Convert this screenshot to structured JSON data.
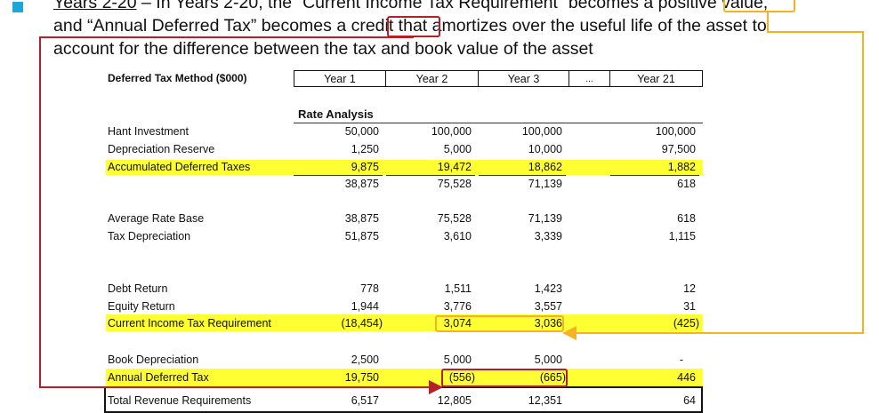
{
  "intro": {
    "line1_prefix": "Years 2-20",
    "line1_rest": " – In Years 2-20, the “Current Income Tax Requirement” becomes a ",
    "line1_emph": "positive",
    "line1_end": " value,",
    "line2_prefix": "and “Annual Deferred Tax” becomes a ",
    "line2_emph": "credit",
    "line2_end": " that amortizes over the useful life of the asset to",
    "line3": "account for the difference between the tax and book value of the asset"
  },
  "table": {
    "title": "Deferred Tax Method ($000)",
    "columns": [
      "Year 1",
      "Year 2",
      "Year 3",
      "...",
      "Year 21"
    ],
    "section_label": "Rate Analysis",
    "rows": {
      "plant_investment": {
        "label": "Hant Investment",
        "values": [
          "50,000",
          "100,000",
          "100,000",
          "100,000"
        ]
      },
      "depreciation_reserve": {
        "label": "Depreciation Reserve",
        "values": [
          "1,250",
          "5,000",
          "10,000",
          "97,500"
        ]
      },
      "accumulated_deferred_taxes": {
        "label": "Accumulated Deferred Taxes",
        "values": [
          "9,875",
          "19,472",
          "18,862",
          "1,882"
        ]
      },
      "subtotal": {
        "values": [
          "38,875",
          "75,528",
          "71,139",
          "618"
        ]
      },
      "average_rate_base": {
        "label": "Average Rate Base",
        "values": [
          "38,875",
          "75,528",
          "71,139",
          "618"
        ]
      },
      "tax_depreciation": {
        "label": "Tax Depreciation",
        "values": [
          "51,875",
          "3,610",
          "3,339",
          "1,115"
        ]
      },
      "debt_return": {
        "label": "Debt Return",
        "values": [
          "778",
          "1,511",
          "1,423",
          "12"
        ]
      },
      "equity_return": {
        "label": "Equity Return",
        "values": [
          "1,944",
          "3,776",
          "3,557",
          "31"
        ]
      },
      "current_income_tax": {
        "label": "Current Income Tax Requirement",
        "values": [
          "(18,454)",
          "3,074",
          "3,036",
          "(425)"
        ]
      },
      "book_depreciation": {
        "label": "Book Depreciation",
        "values": [
          "2,500",
          "5,000",
          "5,000",
          "-"
        ]
      },
      "annual_deferred_tax": {
        "label": "Annual Deferred Tax",
        "values": [
          "19,750",
          "(556)",
          "(665)",
          "446"
        ]
      },
      "total_revenue": {
        "label": "Total Revenue Requirements",
        "values": [
          "6,517",
          "12,805",
          "12,351",
          "64"
        ]
      }
    }
  },
  "colors": {
    "highlight": "#ffff33",
    "red_annotation": "#b3202a",
    "orange_annotation": "#f5b323",
    "bullet": "#1aa8d8"
  }
}
